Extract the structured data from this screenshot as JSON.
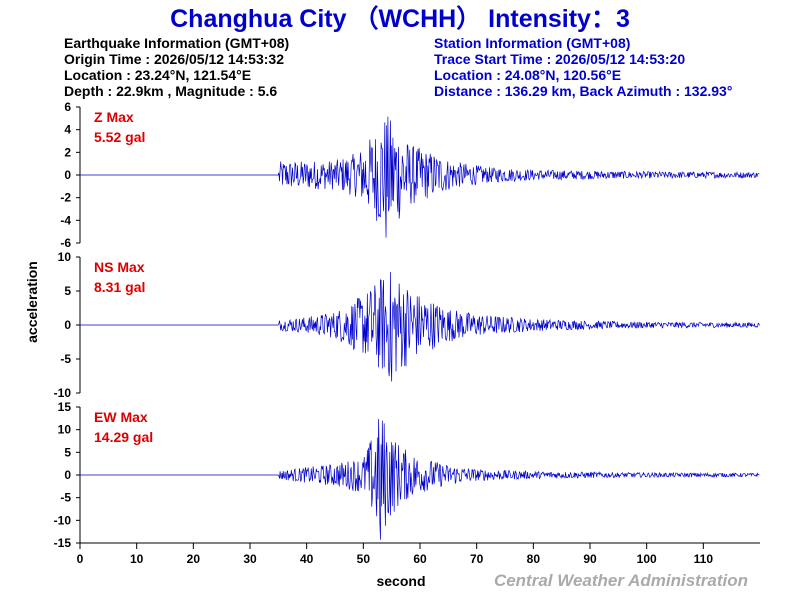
{
  "chart_data": {
    "type": "line",
    "title": "Changhua City （WCHH） Intensity：3",
    "earthquake_info": {
      "heading": "Earthquake Information  (GMT+08)",
      "origin_time": "Origin Time : 2026/05/12 14:53:32",
      "location": "Location : 23.24°N, 121.54°E",
      "depth_magnitude": "Depth : 22.9km , Magnitude : 5.6"
    },
    "station_info": {
      "heading": "Station Information  (GMT+08)",
      "trace_start": "Trace Start Time : 2026/05/12 14:53:20",
      "location": "Location : 24.08°N, 120.56°E",
      "distance": "Distance : 136.29 km, Back Azimuth : 132.93°"
    },
    "xlabel": "second",
    "ylabel": "acceleration",
    "xlim": [
      0,
      120
    ],
    "x_ticks": [
      "0",
      "10",
      "20",
      "30",
      "40",
      "50",
      "60",
      "70",
      "80",
      "90",
      "100",
      "110"
    ],
    "credit": "Central Weather Administration",
    "colors": {
      "trace": "#0000cc",
      "title": "#0000cc",
      "max_label": "#dd0000",
      "credit": "#aaaaaa"
    },
    "panels": [
      {
        "component": "Z",
        "label": "Z Max",
        "max_text": "5.52 gal",
        "max_value": 5.52,
        "ylim": [
          -6,
          6
        ],
        "yticks": [
          "6",
          "4",
          "2",
          "0",
          "-2",
          "-4",
          "-6"
        ],
        "envelope": [
          [
            0,
            0
          ],
          [
            35,
            0
          ],
          [
            35.2,
            1.2
          ],
          [
            45,
            1.3
          ],
          [
            49,
            2.0
          ],
          [
            52,
            3.8
          ],
          [
            54,
            5.5
          ],
          [
            56,
            4.3
          ],
          [
            58,
            2.8
          ],
          [
            62,
            2.0
          ],
          [
            66,
            1.2
          ],
          [
            72,
            0.7
          ],
          [
            80,
            0.45
          ],
          [
            100,
            0.3
          ],
          [
            120,
            0.25
          ]
        ]
      },
      {
        "component": "NS",
        "label": "NS Max",
        "max_text": "8.31 gal",
        "max_value": 8.31,
        "ylim": [
          -10,
          10
        ],
        "yticks": [
          "10",
          "5",
          "0",
          "-5",
          "-10"
        ],
        "envelope": [
          [
            0,
            0
          ],
          [
            35,
            0
          ],
          [
            35.2,
            0.8
          ],
          [
            40,
            1.2
          ],
          [
            45,
            2.0
          ],
          [
            50,
            4.5
          ],
          [
            53,
            7.0
          ],
          [
            55,
            8.3
          ],
          [
            57,
            6.5
          ],
          [
            60,
            4.5
          ],
          [
            65,
            2.5
          ],
          [
            70,
            1.6
          ],
          [
            80,
            0.9
          ],
          [
            90,
            0.6
          ],
          [
            100,
            0.45
          ],
          [
            120,
            0.35
          ]
        ]
      },
      {
        "component": "EW",
        "label": "EW Max",
        "max_text": "14.29 gal",
        "max_value": 14.29,
        "ylim": [
          -15,
          15
        ],
        "yticks": [
          "15",
          "10",
          "5",
          "0",
          "-5",
          "-10",
          "-15"
        ],
        "envelope": [
          [
            0,
            0
          ],
          [
            35,
            0
          ],
          [
            35.2,
            1.0
          ],
          [
            45,
            2.5
          ],
          [
            50,
            4.0
          ],
          [
            52,
            10.0
          ],
          [
            53,
            14.3
          ],
          [
            55,
            9.0
          ],
          [
            57,
            6.0
          ],
          [
            60,
            4.0
          ],
          [
            65,
            2.2
          ],
          [
            70,
            1.3
          ],
          [
            80,
            0.8
          ],
          [
            100,
            0.5
          ],
          [
            120,
            0.4
          ]
        ]
      }
    ]
  }
}
